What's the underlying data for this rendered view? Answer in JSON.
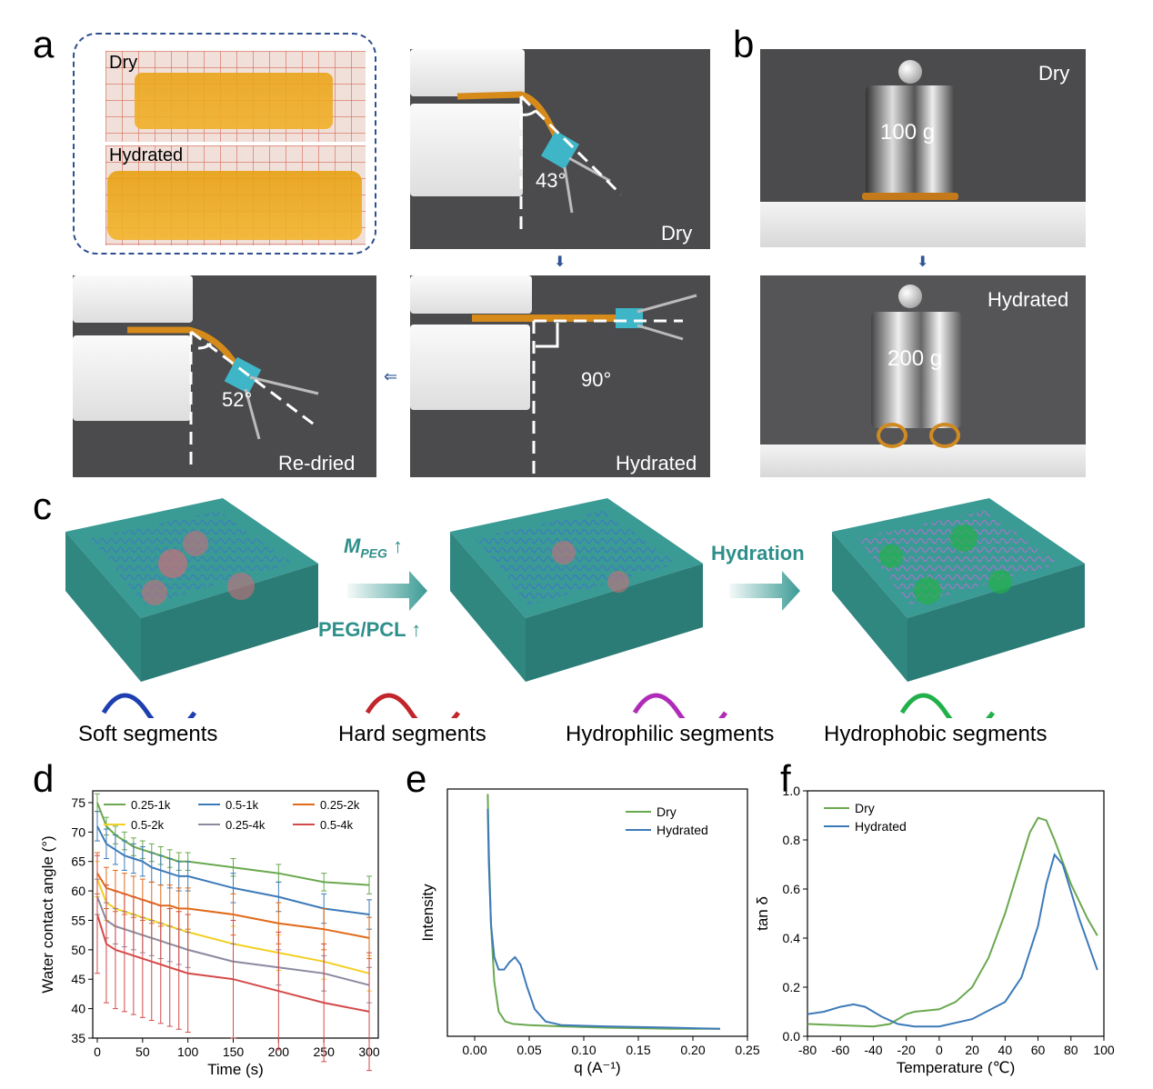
{
  "panels": {
    "a": {
      "label": "a",
      "inset_dry": "Dry",
      "inset_hydrated": "Hydrated",
      "dry_angle": "43°",
      "dry_state": "Dry",
      "hydrated_angle": "90°",
      "hydrated_state": "Hydrated",
      "redried_angle": "52°",
      "redried_state": "Re-dried"
    },
    "b": {
      "label": "b",
      "top_state": "Dry",
      "top_weight": "100 g",
      "bottom_state": "Hydrated",
      "bottom_weight": "200 g"
    },
    "c": {
      "label": "c",
      "arrow1_top": "M",
      "arrow1_top_sub": "PEG",
      "arrow1_top_suffix": " ↑",
      "arrow1_bottom": "PEG/PCL ↑",
      "arrow2_top": "Hydration",
      "legend": [
        "Soft segments",
        "Hard segments",
        "Hydrophilic segments",
        "Hydrophobic segments"
      ]
    },
    "d": {
      "label": "d"
    },
    "e": {
      "label": "e"
    },
    "f": {
      "label": "f"
    }
  },
  "colors": {
    "teal": "#3a9a94",
    "soft": "#1f3fb0",
    "hard": "#c0262c",
    "hydrophilic": "#b02cb8",
    "hydrophobic": "#22b04a"
  },
  "chart_data": [
    {
      "id": "d",
      "type": "line",
      "title": "",
      "xlabel": "Time (s)",
      "ylabel": "Water contact angle (°)",
      "xlim": [
        -5,
        310
      ],
      "ylim": [
        35,
        77
      ],
      "xticks": [
        0,
        50,
        100,
        150,
        200,
        250,
        300
      ],
      "yticks": [
        35,
        40,
        45,
        50,
        55,
        60,
        65,
        70,
        75
      ],
      "x": [
        0,
        10,
        20,
        30,
        40,
        50,
        60,
        70,
        80,
        90,
        100,
        150,
        200,
        250,
        300
      ],
      "series": [
        {
          "name": "0.25-1k",
          "color": "#6aa84f",
          "values": [
            75,
            71,
            69.5,
            68.5,
            67.5,
            67,
            66.5,
            66,
            65.5,
            65,
            65,
            64,
            63,
            61.5,
            61
          ],
          "err": 1.5
        },
        {
          "name": "0.5-1k",
          "color": "#3d7ab8",
          "values": [
            71,
            68,
            67,
            66,
            65.5,
            65,
            64,
            63.5,
            63,
            62.5,
            62.5,
            60.5,
            59,
            57,
            56
          ],
          "err": 2.5
        },
        {
          "name": "0.25-2k",
          "color": "#e06a1a",
          "values": [
            63,
            60.5,
            60,
            59.5,
            59,
            58.5,
            58,
            57.5,
            57.5,
            57,
            57,
            56,
            54.5,
            53.5,
            52
          ],
          "err": 3.5
        },
        {
          "name": "0.5-2k",
          "color": "#f2d024",
          "values": [
            62,
            58,
            57,
            56.5,
            56,
            55.5,
            55,
            54.5,
            54,
            53.5,
            53,
            51,
            49.5,
            48,
            46
          ],
          "err": 3
        },
        {
          "name": "0.25-4k",
          "color": "#8a8aa0",
          "values": [
            59,
            55,
            54,
            53.5,
            53,
            52.5,
            52,
            51.5,
            51,
            50.5,
            50,
            48,
            47,
            46,
            44
          ],
          "err": 3
        },
        {
          "name": "0.5-4k",
          "color": "#d44a4a",
          "values": [
            56,
            51,
            50,
            49.5,
            49,
            48.5,
            48,
            47.5,
            47,
            46.5,
            46,
            45,
            43,
            41,
            39.5
          ],
          "err": 10
        }
      ]
    },
    {
      "id": "e",
      "type": "line",
      "xlabel": "q (A⁻¹)",
      "ylabel": "Intensity",
      "xlim": [
        -0.025,
        0.25
      ],
      "ylim": [
        0,
        1
      ],
      "xticks": [
        0.0,
        0.05,
        0.1,
        0.15,
        0.2,
        0.25
      ],
      "xtick_labels": [
        "0.00",
        "0.05",
        "0.10",
        "0.15",
        "0.20",
        "0.25"
      ],
      "series": [
        {
          "name": "Dry",
          "color": "#6aa84f",
          "x": [
            0.012,
            0.013,
            0.015,
            0.018,
            0.022,
            0.028,
            0.035,
            0.05,
            0.08,
            0.12,
            0.18,
            0.225
          ],
          "y": [
            0.98,
            0.75,
            0.45,
            0.22,
            0.1,
            0.06,
            0.05,
            0.045,
            0.04,
            0.035,
            0.03,
            0.03
          ]
        },
        {
          "name": "Hydrated",
          "color": "#3d7ab8",
          "x": [
            0.012,
            0.013,
            0.015,
            0.018,
            0.022,
            0.027,
            0.032,
            0.037,
            0.042,
            0.048,
            0.055,
            0.065,
            0.08,
            0.12,
            0.18,
            0.225
          ],
          "y": [
            0.92,
            0.7,
            0.45,
            0.32,
            0.27,
            0.27,
            0.3,
            0.32,
            0.29,
            0.2,
            0.11,
            0.06,
            0.045,
            0.04,
            0.035,
            0.03
          ]
        }
      ]
    },
    {
      "id": "f",
      "type": "line",
      "xlabel": "Temperature (℃)",
      "ylabel": "tan δ",
      "xlim": [
        -80,
        100
      ],
      "ylim": [
        0,
        1.0
      ],
      "xticks": [
        -80,
        -60,
        -40,
        -20,
        0,
        20,
        40,
        60,
        80,
        100
      ],
      "yticks": [
        0.0,
        0.2,
        0.4,
        0.6,
        0.8,
        1.0
      ],
      "ytick_labels": [
        "0.0",
        "0.2",
        "0.4",
        "0.6",
        "0.8",
        "1.0"
      ],
      "series": [
        {
          "name": "Dry",
          "color": "#6aa84f",
          "x": [
            -80,
            -60,
            -40,
            -30,
            -20,
            -15,
            0,
            10,
            20,
            30,
            40,
            50,
            55,
            60,
            65,
            70,
            80,
            90,
            96
          ],
          "y": [
            0.05,
            0.045,
            0.04,
            0.05,
            0.09,
            0.1,
            0.11,
            0.14,
            0.2,
            0.32,
            0.5,
            0.72,
            0.83,
            0.89,
            0.88,
            0.8,
            0.62,
            0.48,
            0.41
          ]
        },
        {
          "name": "Hydrated",
          "color": "#3d7ab8",
          "x": [
            -80,
            -70,
            -60,
            -52,
            -45,
            -35,
            -25,
            -15,
            0,
            20,
            40,
            50,
            60,
            65,
            70,
            75,
            85,
            96
          ],
          "y": [
            0.09,
            0.1,
            0.12,
            0.13,
            0.12,
            0.08,
            0.05,
            0.04,
            0.04,
            0.07,
            0.14,
            0.24,
            0.45,
            0.62,
            0.74,
            0.7,
            0.48,
            0.27
          ]
        }
      ]
    }
  ]
}
